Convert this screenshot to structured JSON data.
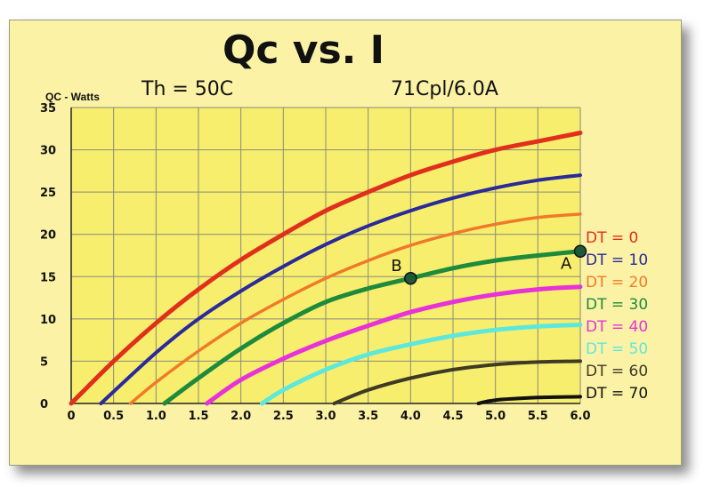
{
  "chart_data": {
    "type": "line",
    "title": "Qc vs. I",
    "subtitle_left": "Th = 50C",
    "subtitle_right": "71Cpl/6.0A",
    "xlabel": "",
    "ylabel": "QC - Watts",
    "xlim": [
      0,
      6.0
    ],
    "ylim": [
      0,
      35
    ],
    "x_ticks": [
      "0",
      "0.5",
      "1.0",
      "1.5",
      "2.0",
      "2.5",
      "3.0",
      "3.5",
      "4.0",
      "4.5",
      "5.0",
      "5.5",
      "6.0"
    ],
    "y_ticks": [
      "0",
      "5",
      "10",
      "15",
      "20",
      "25",
      "30",
      "35"
    ],
    "grid": true,
    "legend_position": "right",
    "series": [
      {
        "name": "DT = 0",
        "color": "#e0301c",
        "x": [
          0,
          0.5,
          1.0,
          1.5,
          2.0,
          2.5,
          3.0,
          3.5,
          4.0,
          4.5,
          5.0,
          5.5,
          6.0
        ],
        "y": [
          0,
          5.0,
          9.5,
          13.5,
          17.0,
          20.0,
          22.8,
          25.0,
          27.0,
          28.6,
          30.0,
          31.0,
          32.0
        ]
      },
      {
        "name": "DT = 10",
        "color": "#2a2a9a",
        "x": [
          0.35,
          1.0,
          1.5,
          2.0,
          2.5,
          3.0,
          3.5,
          4.0,
          4.5,
          5.0,
          5.5,
          6.0
        ],
        "y": [
          0,
          6.0,
          10.0,
          13.3,
          16.2,
          18.8,
          21.0,
          22.8,
          24.3,
          25.5,
          26.4,
          27.0
        ]
      },
      {
        "name": "DT = 20",
        "color": "#f07a28",
        "x": [
          0.7,
          1.0,
          1.5,
          2.0,
          2.5,
          3.0,
          3.5,
          4.0,
          4.5,
          5.0,
          5.5,
          6.0
        ],
        "y": [
          0,
          2.5,
          6.2,
          9.5,
          12.3,
          14.8,
          16.9,
          18.7,
          20.1,
          21.2,
          22.0,
          22.4
        ]
      },
      {
        "name": "DT = 30",
        "color": "#1e8a3c",
        "x": [
          1.1,
          1.5,
          2.0,
          2.5,
          3.0,
          3.5,
          4.0,
          4.5,
          5.0,
          5.5,
          6.0
        ],
        "y": [
          0,
          3.0,
          6.5,
          9.5,
          12.0,
          13.6,
          14.8,
          16.0,
          16.9,
          17.5,
          18.0
        ]
      },
      {
        "name": "DT = 40",
        "color": "#e632d8",
        "x": [
          1.6,
          2.0,
          2.5,
          3.0,
          3.5,
          4.0,
          4.5,
          5.0,
          5.5,
          6.0
        ],
        "y": [
          0,
          2.8,
          5.3,
          7.4,
          9.2,
          10.8,
          12.0,
          12.9,
          13.5,
          13.8
        ]
      },
      {
        "name": "DT = 50",
        "color": "#5ee8dc",
        "x": [
          2.25,
          2.5,
          3.0,
          3.5,
          4.0,
          4.5,
          5.0,
          5.5,
          6.0
        ],
        "y": [
          0,
          1.6,
          4.0,
          5.8,
          7.0,
          8.0,
          8.7,
          9.1,
          9.3
        ]
      },
      {
        "name": "DT = 60",
        "color": "#3e3a24",
        "x": [
          3.1,
          3.5,
          4.0,
          4.5,
          5.0,
          5.5,
          6.0
        ],
        "y": [
          0,
          1.6,
          3.0,
          4.0,
          4.6,
          4.9,
          5.0
        ]
      },
      {
        "name": "DT = 70",
        "color": "#111111",
        "x": [
          4.8,
          5.0,
          5.5,
          6.0
        ],
        "y": [
          0,
          0.4,
          0.7,
          0.8
        ]
      }
    ],
    "annotations": [
      {
        "label": "A",
        "x": 6.0,
        "y": 18.0
      },
      {
        "label": "B",
        "x": 4.0,
        "y": 14.8
      }
    ]
  }
}
